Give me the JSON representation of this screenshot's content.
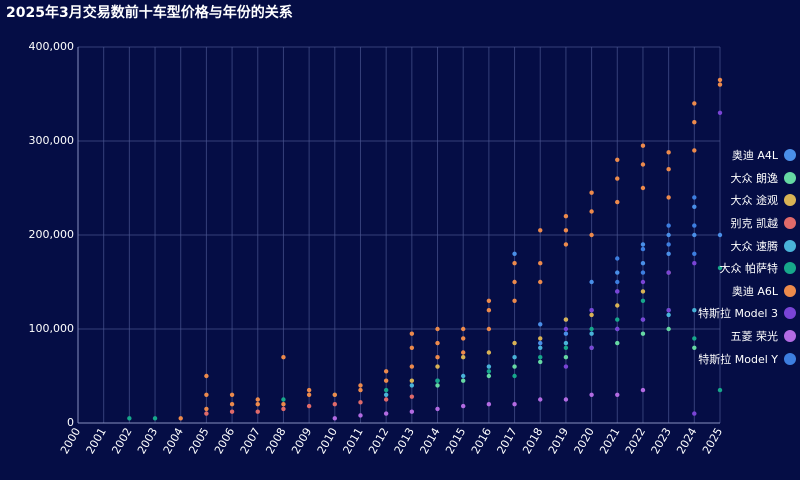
{
  "chart_data": {
    "type": "scatter",
    "title": "2025年3月交易数前十车型价格与年份的关系",
    "xlabel": "",
    "ylabel": "",
    "x_ticks": [
      "2000",
      "2001",
      "2002",
      "2003",
      "2004",
      "2005",
      "2006",
      "2007",
      "2008",
      "2009",
      "2010",
      "2011",
      "2012",
      "2013",
      "2014",
      "2015",
      "2016",
      "2017",
      "2018",
      "2019",
      "2020",
      "2021",
      "2022",
      "2023",
      "2024",
      "2025"
    ],
    "xlim": [
      2000,
      2025
    ],
    "ylim": [
      0,
      400000
    ],
    "y_ticks": [
      "0",
      "100,000",
      "200,000",
      "300,000",
      "400,000"
    ],
    "y_tick_values": [
      0,
      100000,
      200000,
      300000,
      400000
    ],
    "grid": true,
    "legend_position": "right",
    "series": [
      {
        "name": "奥迪 A4L",
        "color": "#4a8fe8",
        "points": [
          [
            2017,
            180000
          ],
          [
            2018,
            105000
          ],
          [
            2018,
            85000
          ],
          [
            2019,
            110000
          ],
          [
            2019,
            95000
          ],
          [
            2020,
            150000
          ],
          [
            2020,
            120000
          ],
          [
            2021,
            160000
          ],
          [
            2021,
            140000
          ],
          [
            2022,
            190000
          ],
          [
            2022,
            170000
          ],
          [
            2023,
            200000
          ],
          [
            2023,
            180000
          ],
          [
            2024,
            230000
          ],
          [
            2024,
            200000
          ],
          [
            2025,
            200000
          ]
        ]
      },
      {
        "name": "大众 朗逸",
        "color": "#66d9a3",
        "points": [
          [
            2014,
            40000
          ],
          [
            2015,
            45000
          ],
          [
            2016,
            50000
          ],
          [
            2017,
            60000
          ],
          [
            2018,
            65000
          ],
          [
            2019,
            70000
          ],
          [
            2020,
            80000
          ],
          [
            2021,
            85000
          ],
          [
            2022,
            95000
          ],
          [
            2023,
            100000
          ],
          [
            2024,
            80000
          ]
        ]
      },
      {
        "name": "大众 途观",
        "color": "#d9b355",
        "points": [
          [
            2013,
            45000
          ],
          [
            2014,
            60000
          ],
          [
            2015,
            70000
          ],
          [
            2016,
            75000
          ],
          [
            2017,
            85000
          ],
          [
            2018,
            90000
          ],
          [
            2019,
            110000
          ],
          [
            2020,
            115000
          ],
          [
            2021,
            125000
          ],
          [
            2022,
            140000
          ],
          [
            2023,
            160000
          ]
        ]
      },
      {
        "name": "别克 凯越",
        "color": "#e06a6a",
        "points": [
          [
            2005,
            10000
          ],
          [
            2006,
            12000
          ],
          [
            2007,
            12000
          ],
          [
            2008,
            15000
          ],
          [
            2009,
            18000
          ],
          [
            2010,
            20000
          ],
          [
            2011,
            22000
          ],
          [
            2012,
            25000
          ],
          [
            2013,
            28000
          ]
        ]
      },
      {
        "name": "大众 速腾",
        "color": "#49b3d9",
        "points": [
          [
            2012,
            30000
          ],
          [
            2013,
            40000
          ],
          [
            2014,
            45000
          ],
          [
            2015,
            50000
          ],
          [
            2016,
            60000
          ],
          [
            2017,
            70000
          ],
          [
            2018,
            80000
          ],
          [
            2019,
            85000
          ],
          [
            2020,
            95000
          ],
          [
            2021,
            100000
          ],
          [
            2022,
            110000
          ],
          [
            2023,
            115000
          ],
          [
            2024,
            120000
          ]
        ]
      },
      {
        "name": "大众 帕萨特",
        "color": "#17a88b",
        "points": [
          [
            2002,
            5000
          ],
          [
            2003,
            5000
          ],
          [
            2008,
            25000
          ],
          [
            2010,
            30000
          ],
          [
            2012,
            35000
          ],
          [
            2014,
            45000
          ],
          [
            2016,
            55000
          ],
          [
            2017,
            50000
          ],
          [
            2018,
            70000
          ],
          [
            2019,
            80000
          ],
          [
            2020,
            100000
          ],
          [
            2021,
            110000
          ],
          [
            2022,
            130000
          ],
          [
            2023,
            120000
          ],
          [
            2024,
            90000
          ],
          [
            2025,
            165000
          ],
          [
            2025,
            35000
          ]
        ]
      },
      {
        "name": "奥迪 A6L",
        "color": "#ed8a4c",
        "points": [
          [
            2004,
            5000
          ],
          [
            2005,
            50000
          ],
          [
            2005,
            30000
          ],
          [
            2005,
            15000
          ],
          [
            2006,
            30000
          ],
          [
            2006,
            20000
          ],
          [
            2007,
            25000
          ],
          [
            2007,
            20000
          ],
          [
            2008,
            70000
          ],
          [
            2008,
            20000
          ],
          [
            2009,
            35000
          ],
          [
            2009,
            30000
          ],
          [
            2010,
            30000
          ],
          [
            2011,
            40000
          ],
          [
            2011,
            35000
          ],
          [
            2012,
            55000
          ],
          [
            2012,
            45000
          ],
          [
            2013,
            95000
          ],
          [
            2013,
            80000
          ],
          [
            2013,
            60000
          ],
          [
            2014,
            100000
          ],
          [
            2014,
            85000
          ],
          [
            2014,
            70000
          ],
          [
            2015,
            100000
          ],
          [
            2015,
            90000
          ],
          [
            2015,
            75000
          ],
          [
            2016,
            130000
          ],
          [
            2016,
            120000
          ],
          [
            2016,
            100000
          ],
          [
            2017,
            170000
          ],
          [
            2017,
            150000
          ],
          [
            2017,
            130000
          ],
          [
            2018,
            205000
          ],
          [
            2018,
            170000
          ],
          [
            2018,
            150000
          ],
          [
            2019,
            220000
          ],
          [
            2019,
            205000
          ],
          [
            2019,
            190000
          ],
          [
            2020,
            245000
          ],
          [
            2020,
            225000
          ],
          [
            2020,
            200000
          ],
          [
            2021,
            280000
          ],
          [
            2021,
            260000
          ],
          [
            2021,
            235000
          ],
          [
            2022,
            295000
          ],
          [
            2022,
            275000
          ],
          [
            2022,
            250000
          ],
          [
            2023,
            288000
          ],
          [
            2023,
            270000
          ],
          [
            2023,
            240000
          ],
          [
            2024,
            340000
          ],
          [
            2024,
            320000
          ],
          [
            2024,
            290000
          ],
          [
            2025,
            365000
          ],
          [
            2025,
            360000
          ]
        ]
      },
      {
        "name": "特斯拉 Model 3",
        "color": "#7a44d6",
        "points": [
          [
            2019,
            100000
          ],
          [
            2019,
            60000
          ],
          [
            2020,
            120000
          ],
          [
            2020,
            80000
          ],
          [
            2021,
            140000
          ],
          [
            2021,
            100000
          ],
          [
            2022,
            150000
          ],
          [
            2022,
            110000
          ],
          [
            2023,
            160000
          ],
          [
            2023,
            120000
          ],
          [
            2024,
            170000
          ],
          [
            2024,
            10000
          ],
          [
            2025,
            330000
          ]
        ]
      },
      {
        "name": "五菱 荣光",
        "color": "#b36be3",
        "points": [
          [
            2010,
            5000
          ],
          [
            2011,
            8000
          ],
          [
            2012,
            10000
          ],
          [
            2013,
            12000
          ],
          [
            2014,
            15000
          ],
          [
            2015,
            18000
          ],
          [
            2016,
            20000
          ],
          [
            2017,
            20000
          ],
          [
            2018,
            25000
          ],
          [
            2019,
            25000
          ],
          [
            2020,
            30000
          ],
          [
            2021,
            30000
          ],
          [
            2022,
            35000
          ]
        ]
      },
      {
        "name": "特斯拉 Model Y",
        "color": "#3d7ee0",
        "points": [
          [
            2021,
            175000
          ],
          [
            2021,
            150000
          ],
          [
            2022,
            185000
          ],
          [
            2022,
            160000
          ],
          [
            2023,
            210000
          ],
          [
            2023,
            190000
          ],
          [
            2024,
            240000
          ],
          [
            2024,
            210000
          ],
          [
            2024,
            180000
          ]
        ]
      }
    ]
  }
}
